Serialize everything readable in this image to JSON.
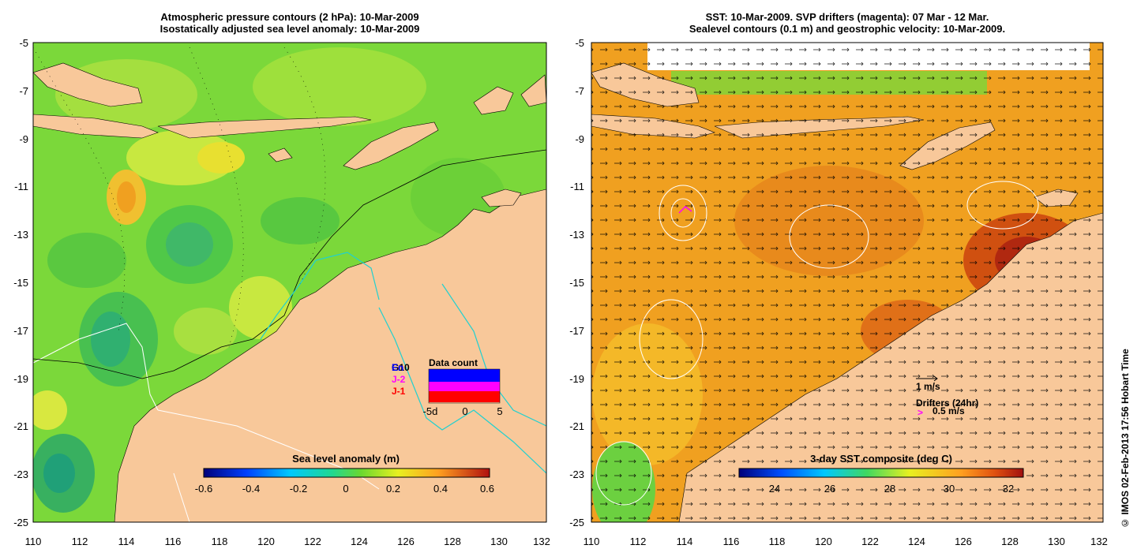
{
  "left_panel": {
    "title_line1": "Atmospheric pressure contours (2 hPa): 10-Mar-2009",
    "title_line2": "Isostatically adjusted sea level anomaly: 10-Mar-2009",
    "colorbar_title": "Sea level anomaly (m)",
    "colorbar_ticks": [
      "-0.6",
      "-0.4",
      "-0.2",
      "0",
      "0.2",
      "0.4",
      "0.6"
    ],
    "inset": {
      "title": "Data count",
      "legend": [
        {
          "label": "G10",
          "color": "#000000"
        },
        {
          "label": "En",
          "color": "#0000ff"
        },
        {
          "label": "J-2",
          "color": "#ff00ff"
        },
        {
          "label": "J-1",
          "color": "#ff0000"
        }
      ],
      "xticks": [
        "-5d",
        "0",
        "5"
      ]
    }
  },
  "right_panel": {
    "title_line1": "SST: 10-Mar-2009. SVP drifters (magenta): 07 Mar - 12 Mar.",
    "title_line2": "Sealevel contours (0.1 m) and geostrophic velocity: 10-Mar-2009.",
    "colorbar_title": "3-day SST composite (deg C)",
    "colorbar_ticks": [
      "24",
      "26",
      "28",
      "30",
      "32"
    ],
    "scale_label": "1 m/s",
    "drifters_label": "Drifters (24hr)",
    "drifters_symbol": ">",
    "drifters_speed": "0.5 m/s"
  },
  "axes": {
    "x_ticks": [
      "110",
      "112",
      "114",
      "116",
      "118",
      "120",
      "122",
      "124",
      "126",
      "128",
      "130",
      "132"
    ],
    "y_ticks": [
      "-5",
      "-7",
      "-9",
      "-11",
      "-13",
      "-15",
      "-17",
      "-19",
      "-21",
      "-23",
      "-25"
    ]
  },
  "credit": "© IMOS 02-Feb-2013 17:56 Hobart Time",
  "colors": {
    "land": "#f8c89a",
    "ocean_sla": "#7bd83a",
    "ocean_sst": "#f0a020",
    "isobath": "#20d0d0"
  }
}
